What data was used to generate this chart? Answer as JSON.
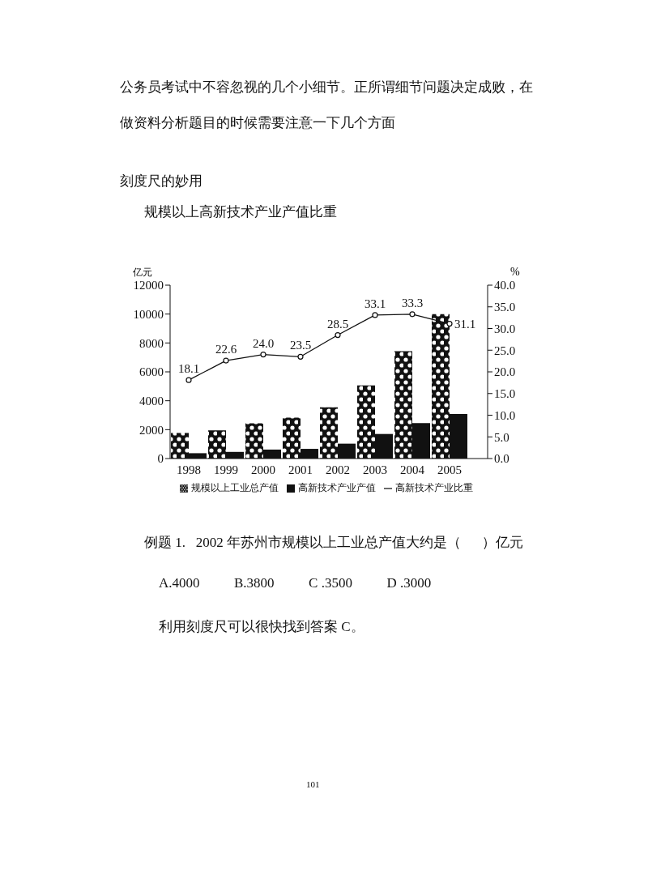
{
  "chart_data": {
    "type": "bar",
    "title": "规模以上高新技术产业产值比重",
    "annotations": [
      "公务员考试中不容忽视的几个小细节。正所谓细节问题决定成败，在",
      "做资料分析题目的时候需要注意一下几个方面",
      "刻度尺的妙用",
      "例题 1.   2002 年苏州市规模以上工业总产值大约是（      ）亿元",
      "A.4000          B.3800          C .3500          D .3000",
      "利用刻度尺可以很快找到答案 C。",
      "101"
    ],
    "ylabel": "亿元",
    "y2label": "%",
    "categories": [
      "1998",
      "1999",
      "2000",
      "2001",
      "2002",
      "2003",
      "2004",
      "2005"
    ],
    "series": [
      {
        "name": "规模以上工业总产值",
        "color": "#111111",
        "values": [
          1770,
          1950,
          2440,
          2830,
          3540,
          5060,
          7430,
          10000
        ]
      },
      {
        "name": "高新技术产业产值",
        "color": "#111111",
        "values": [
          370,
          460,
          620,
          670,
          1030,
          1700,
          2460,
          3080
        ]
      },
      {
        "name": "高新技术产业比重",
        "type": "line",
        "axis": "y2",
        "color": "#111111",
        "marker": "circle",
        "values": [
          18.1,
          22.6,
          24.0,
          23.5,
          28.5,
          33.1,
          33.3,
          31.1
        ],
        "value_labels": [
          "18.1",
          "22.6",
          "24.0",
          "23.5",
          "28.5",
          "33.1",
          "33.3",
          "31.1"
        ]
      }
    ],
    "ylim": [
      0,
      12000
    ],
    "yticks": [
      0,
      2000,
      4000,
      6000,
      8000,
      10000,
      12000
    ],
    "y2lim": [
      0,
      40
    ],
    "y2ticks": [
      {
        "value": 0,
        "label": "0.0"
      },
      {
        "value": 5,
        "label": "5.0"
      },
      {
        "value": 10,
        "label": "10.0"
      },
      {
        "value": 15,
        "label": "15.0"
      },
      {
        "value": 20,
        "label": "20.0"
      },
      {
        "value": 25,
        "label": "25.0"
      },
      {
        "value": 30,
        "label": "30.0"
      },
      {
        "value": 35,
        "label": "35.0"
      },
      {
        "value": 40,
        "label": "40.0"
      }
    ],
    "grid": false,
    "legend": "bottom"
  }
}
